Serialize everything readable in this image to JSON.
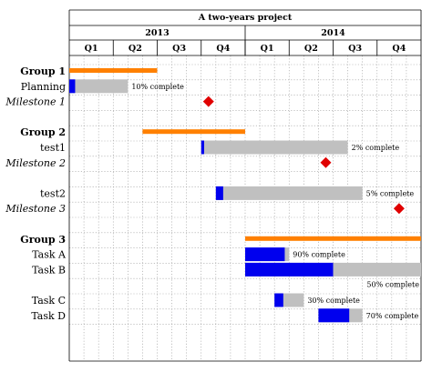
{
  "chart_data": {
    "type": "gantt",
    "title": "A two-years project",
    "years": [
      "2013",
      "2014"
    ],
    "quarters": [
      "Q1",
      "Q2",
      "Q3",
      "Q4",
      "Q1",
      "Q2",
      "Q3",
      "Q4"
    ],
    "bar_colors": {
      "group": "#ff8000",
      "progress": "#0000ee",
      "remaining": "#c0c0c0",
      "milestone": "#e00000"
    },
    "grid": "dotted, 3 per quarter",
    "rows": [
      {
        "kind": "group",
        "label": "Group 1",
        "start": 1,
        "end": 6
      },
      {
        "kind": "task",
        "label": "Planning",
        "start": 1,
        "end": 4,
        "progress": 10,
        "progress_label": "10% complete"
      },
      {
        "kind": "milestone",
        "label": "Milestone 1",
        "at": 10
      },
      {
        "kind": "spacer"
      },
      {
        "kind": "group",
        "label": "Group 2",
        "start": 6,
        "end": 12
      },
      {
        "kind": "task",
        "label": "test1",
        "start": 10,
        "end": 19,
        "progress": 2,
        "progress_label": "2% complete"
      },
      {
        "kind": "milestone",
        "label": "Milestone 2",
        "at": 18
      },
      {
        "kind": "spacer"
      },
      {
        "kind": "task",
        "label": "test2",
        "start": 11,
        "end": 20,
        "progress": 5,
        "progress_label": "5% complete"
      },
      {
        "kind": "milestone",
        "label": "Milestone 3",
        "at": 23
      },
      {
        "kind": "spacer"
      },
      {
        "kind": "group",
        "label": "Group 3",
        "start": 13,
        "end": 24
      },
      {
        "kind": "task",
        "label": "Task A",
        "start": 13,
        "end": 15,
        "progress": 90,
        "progress_label": "90% complete"
      },
      {
        "kind": "task",
        "label": "Task B",
        "start": 13,
        "end": 24,
        "progress": 50,
        "progress_label": "50% complete",
        "label_below": true
      },
      {
        "kind": "spacer"
      },
      {
        "kind": "task",
        "label": "Task C",
        "start": 15,
        "end": 16,
        "progress": 30,
        "progress_label": "30% complete"
      },
      {
        "kind": "task",
        "label": "Task D",
        "start": 18,
        "end": 20,
        "progress": 70,
        "progress_label": "70% complete"
      }
    ]
  }
}
